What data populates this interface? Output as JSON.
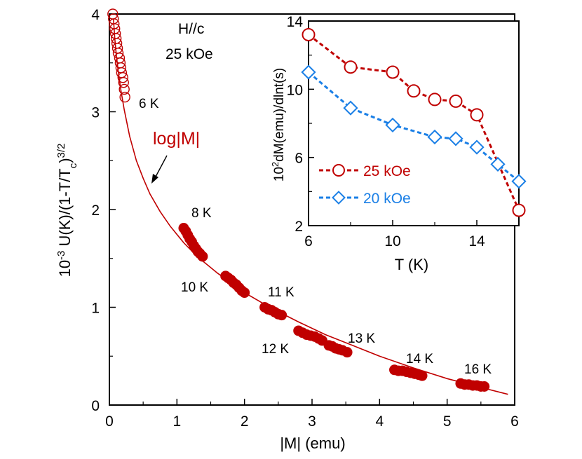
{
  "colors": {
    "main_series": "#c00000",
    "fit_curve": "#c00000",
    "inset_25": "#c00000",
    "inset_20": "#1a7fe6",
    "axes": "#000000"
  },
  "chart_data": [
    {
      "type": "scatter",
      "xlabel": "|M| (emu)",
      "ylabel_parts": [
        "10",
        "-3",
        " U(K)/(1-T/T",
        "c",
        ")",
        "3/2"
      ],
      "xlim": [
        0,
        6
      ],
      "ylim": [
        0,
        4
      ],
      "x_ticks": [
        "0",
        "1",
        "2",
        "3",
        "4",
        "5",
        "6"
      ],
      "y_ticks": [
        "0",
        "1",
        "2",
        "3",
        "4"
      ],
      "field_label": "H//c",
      "field_value": "25 kOe",
      "fit": {
        "label": "log|M|",
        "x": [
          0.06,
          0.08,
          0.1,
          0.13,
          0.17,
          0.22,
          0.3,
          0.4,
          0.5,
          0.6,
          0.75,
          0.9,
          1.1,
          1.3,
          1.6,
          2.0,
          2.4,
          2.8,
          3.2,
          3.6,
          4.0,
          4.5,
          5.0,
          5.5,
          5.9
        ],
        "y": [
          3.95,
          3.75,
          3.6,
          3.42,
          3.22,
          3.02,
          2.75,
          2.5,
          2.32,
          2.16,
          1.98,
          1.83,
          1.66,
          1.52,
          1.35,
          1.15,
          0.99,
          0.85,
          0.72,
          0.61,
          0.5,
          0.38,
          0.27,
          0.18,
          0.11
        ]
      },
      "segments": [
        {
          "label": "6 K",
          "points": [
            [
              0.05,
              4.0
            ],
            [
              0.06,
              3.95
            ],
            [
              0.07,
              3.9
            ],
            [
              0.08,
              3.85
            ],
            [
              0.09,
              3.8
            ],
            [
              0.1,
              3.75
            ],
            [
              0.11,
              3.7
            ],
            [
              0.12,
              3.65
            ],
            [
              0.13,
              3.6
            ],
            [
              0.15,
              3.55
            ],
            [
              0.16,
              3.5
            ],
            [
              0.17,
              3.45
            ],
            [
              0.18,
              3.4
            ],
            [
              0.2,
              3.35
            ],
            [
              0.21,
              3.3
            ],
            [
              0.22,
              3.23
            ],
            [
              0.23,
              3.15
            ]
          ]
        },
        {
          "label": "8 K",
          "points": [
            [
              1.1,
              1.81
            ],
            [
              1.13,
              1.78
            ],
            [
              1.16,
              1.74
            ],
            [
              1.19,
              1.7
            ],
            [
              1.22,
              1.67
            ],
            [
              1.25,
              1.63
            ],
            [
              1.28,
              1.6
            ],
            [
              1.31,
              1.57
            ],
            [
              1.34,
              1.55
            ],
            [
              1.38,
              1.52
            ]
          ]
        },
        {
          "label": "10 K",
          "points": [
            [
              1.72,
              1.32
            ],
            [
              1.76,
              1.3
            ],
            [
              1.8,
              1.28
            ],
            [
              1.84,
              1.25
            ],
            [
              1.88,
              1.23
            ],
            [
              1.92,
              1.2
            ],
            [
              1.96,
              1.17
            ],
            [
              2.0,
              1.15
            ]
          ]
        },
        {
          "label": "11 K",
          "points": [
            [
              2.3,
              1.0
            ],
            [
              2.35,
              0.98
            ],
            [
              2.4,
              0.97
            ],
            [
              2.45,
              0.95
            ],
            [
              2.5,
              0.93
            ],
            [
              2.55,
              0.92
            ]
          ]
        },
        {
          "label": "12 K",
          "points": [
            [
              2.8,
              0.76
            ],
            [
              2.86,
              0.74
            ],
            [
              2.92,
              0.72
            ],
            [
              2.98,
              0.71
            ],
            [
              3.04,
              0.7
            ],
            [
              3.1,
              0.68
            ],
            [
              3.15,
              0.66
            ]
          ]
        },
        {
          "label": "13 K",
          "points": [
            [
              3.25,
              0.61
            ],
            [
              3.3,
              0.6
            ],
            [
              3.35,
              0.58
            ],
            [
              3.4,
              0.57
            ],
            [
              3.45,
              0.56
            ],
            [
              3.52,
              0.54
            ]
          ]
        },
        {
          "label": "14 K",
          "points": [
            [
              4.22,
              0.36
            ],
            [
              4.28,
              0.35
            ],
            [
              4.34,
              0.35
            ],
            [
              4.4,
              0.34
            ],
            [
              4.46,
              0.33
            ],
            [
              4.52,
              0.32
            ],
            [
              4.58,
              0.31
            ],
            [
              4.63,
              0.3
            ]
          ]
        },
        {
          "label": "16 K",
          "points": [
            [
              5.2,
              0.22
            ],
            [
              5.26,
              0.21
            ],
            [
              5.32,
              0.21
            ],
            [
              5.38,
              0.2
            ],
            [
              5.44,
              0.2
            ],
            [
              5.5,
              0.19
            ],
            [
              5.55,
              0.19
            ]
          ]
        }
      ]
    },
    {
      "type": "line",
      "xlabel": "T (K)",
      "ylabel_parts": [
        "10",
        "2",
        "dM(emu)/dlnt(s)"
      ],
      "xlim": [
        6,
        16
      ],
      "ylim": [
        2,
        14
      ],
      "x_ticks": [
        "6",
        "10",
        "14"
      ],
      "y_ticks": [
        "2",
        "6",
        "10",
        "14"
      ],
      "legend_position": "lower-left",
      "series": [
        {
          "name": "25 kOe",
          "marker": "circle",
          "x": [
            6,
            8,
            10,
            11,
            12,
            13,
            14,
            16
          ],
          "y": [
            13.2,
            11.3,
            11.0,
            9.9,
            9.4,
            9.3,
            8.5,
            2.9
          ]
        },
        {
          "name": "20 kOe",
          "marker": "diamond",
          "x": [
            6,
            8,
            10,
            12,
            13,
            14,
            15,
            16
          ],
          "y": [
            11.0,
            8.9,
            7.9,
            7.2,
            7.1,
            6.6,
            5.6,
            4.6
          ]
        }
      ]
    }
  ]
}
